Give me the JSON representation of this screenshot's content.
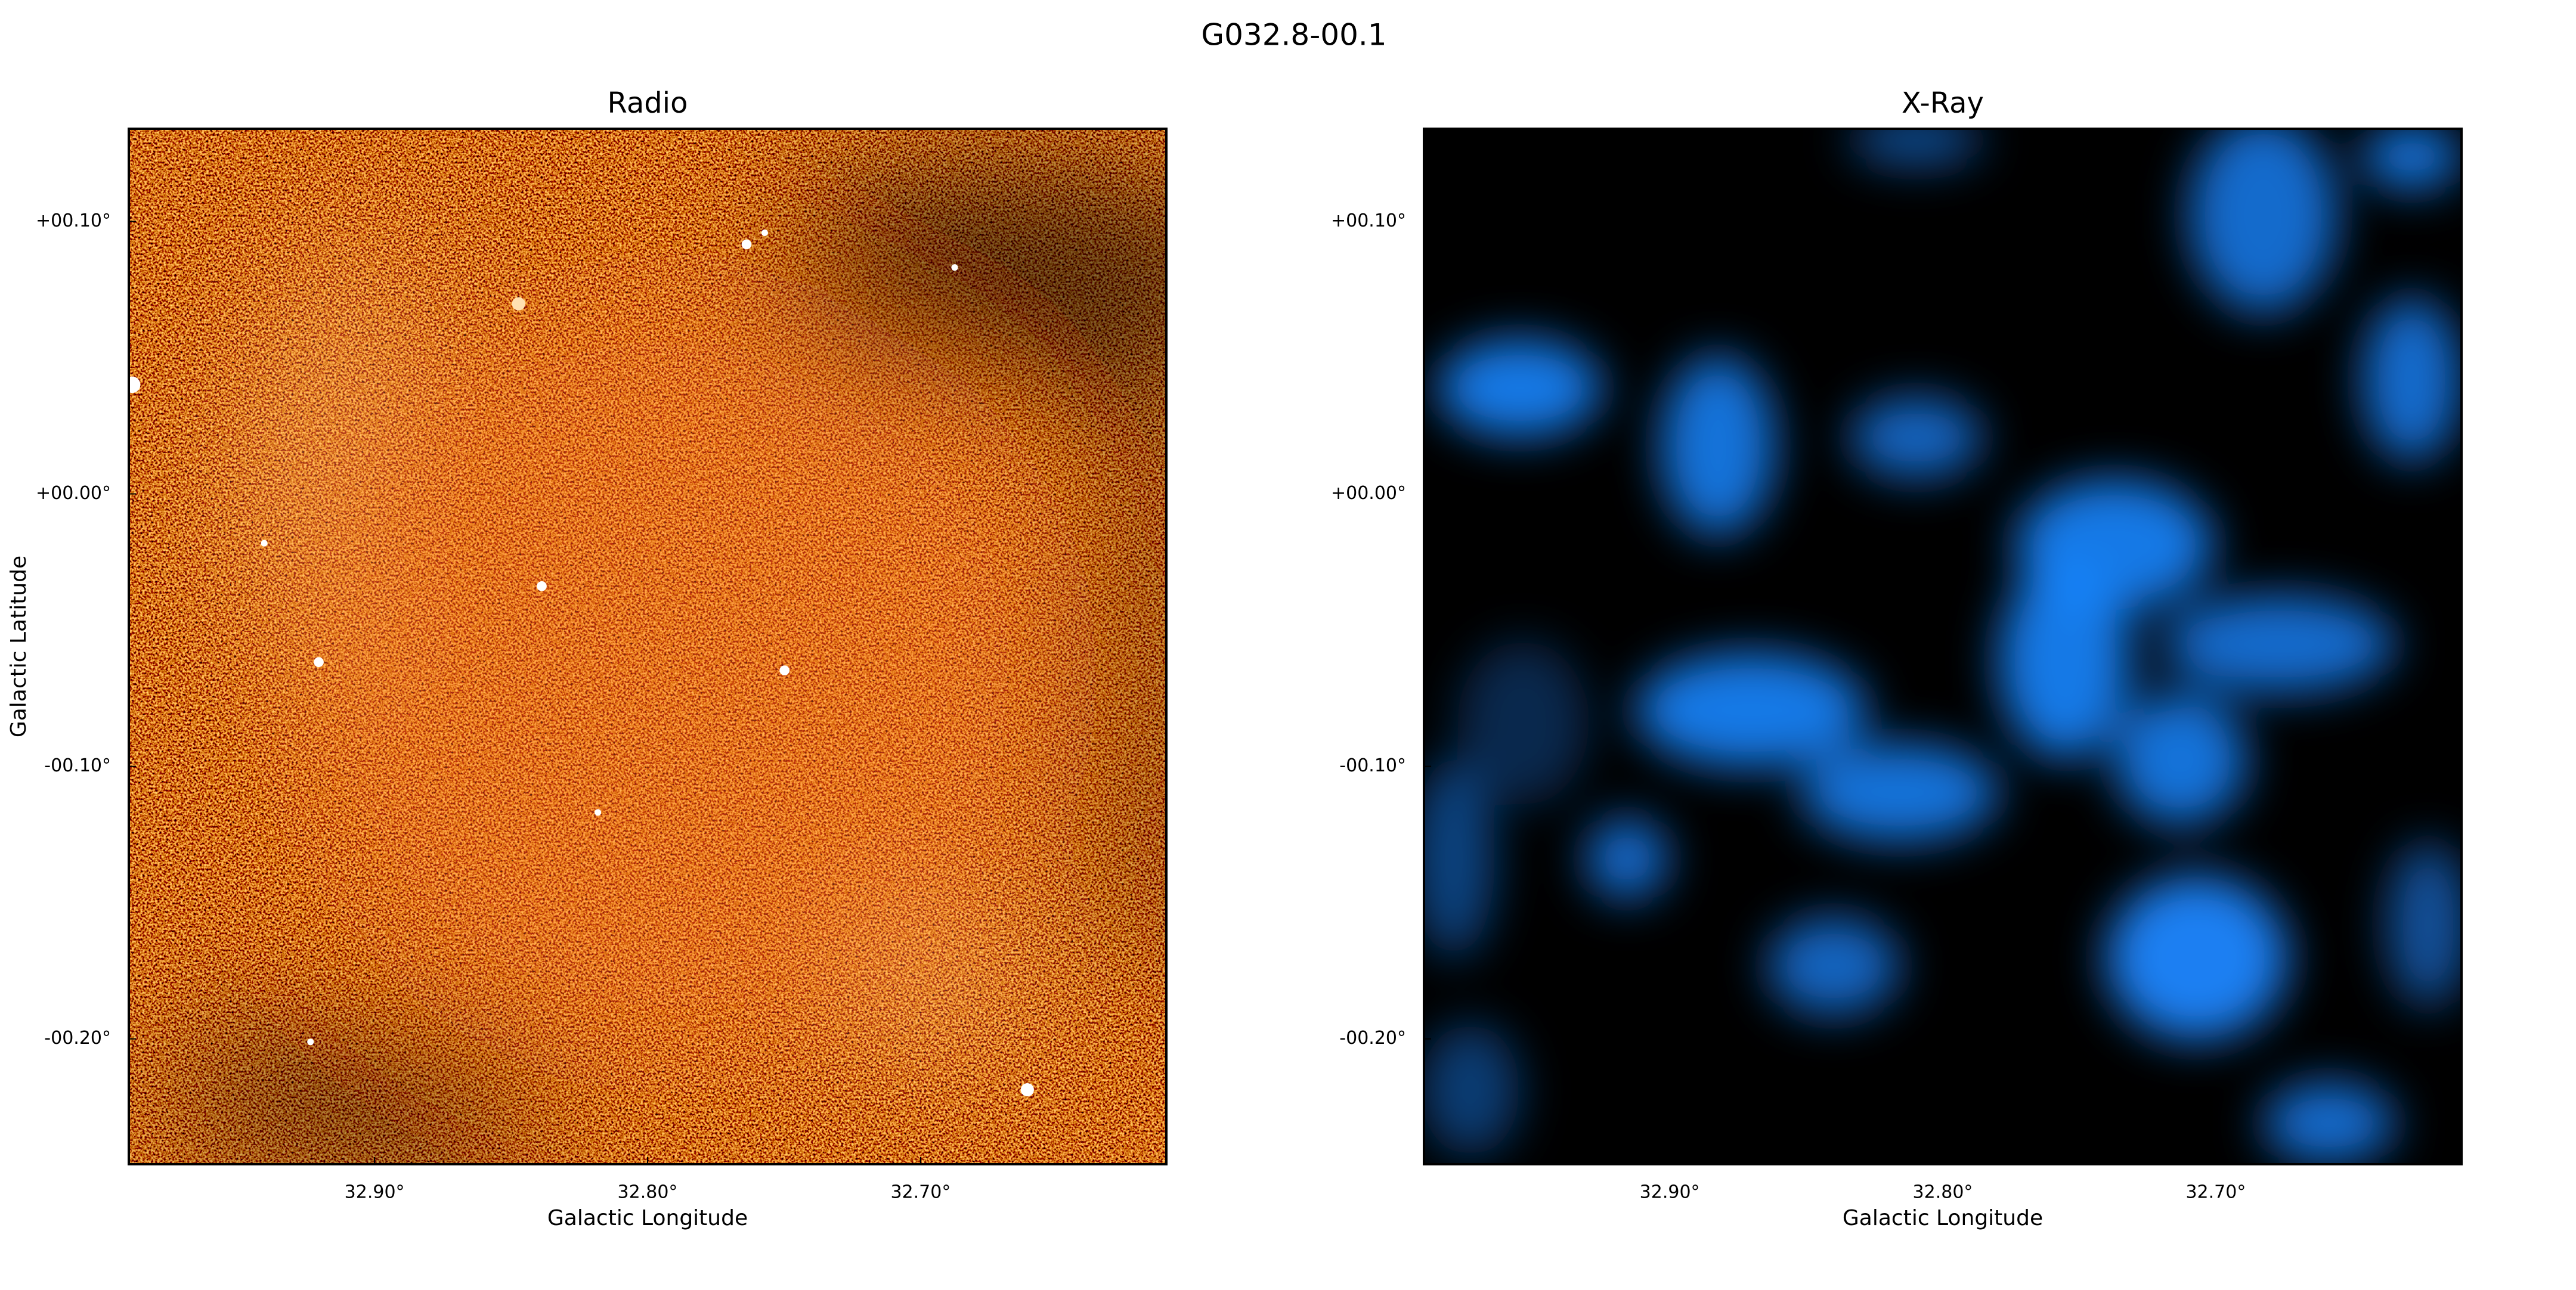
{
  "title": "G032.8-00.1",
  "chart_data": [
    {
      "type": "image",
      "title": "Radio",
      "xlabel": "Galactic Longitude",
      "ylabel": "Galactic Latitude",
      "xlim": [
        32.99,
        32.61
      ],
      "ylim": [
        -0.246,
        0.134
      ],
      "xticks": [
        {
          "value": 32.9,
          "label": "32.90°"
        },
        {
          "value": 32.8,
          "label": "32.80°"
        },
        {
          "value": 32.7,
          "label": "32.70°"
        }
      ],
      "yticks": [
        {
          "value": 0.1,
          "label": "+00.10°"
        },
        {
          "value": 0.0,
          "label": "+00.00°"
        },
        {
          "value": -0.1,
          "label": "-00.10°"
        },
        {
          "value": -0.2,
          "label": "-00.20°"
        }
      ]
    },
    {
      "type": "image",
      "title": "X-Ray",
      "xlabel": "Galactic Longitude",
      "xlim": [
        32.99,
        32.61
      ],
      "ylim": [
        -0.246,
        0.134
      ],
      "xticks": [
        {
          "value": 32.9,
          "label": "32.90°"
        },
        {
          "value": 32.8,
          "label": "32.80°"
        },
        {
          "value": 32.7,
          "label": "32.70°"
        }
      ],
      "yticks": [
        {
          "value": 0.1,
          "label": "+00.10°"
        },
        {
          "value": 0.0,
          "label": "+00.00°"
        },
        {
          "value": -0.1,
          "label": "-00.10°"
        },
        {
          "value": -0.2,
          "label": "-00.20°"
        }
      ]
    }
  ]
}
